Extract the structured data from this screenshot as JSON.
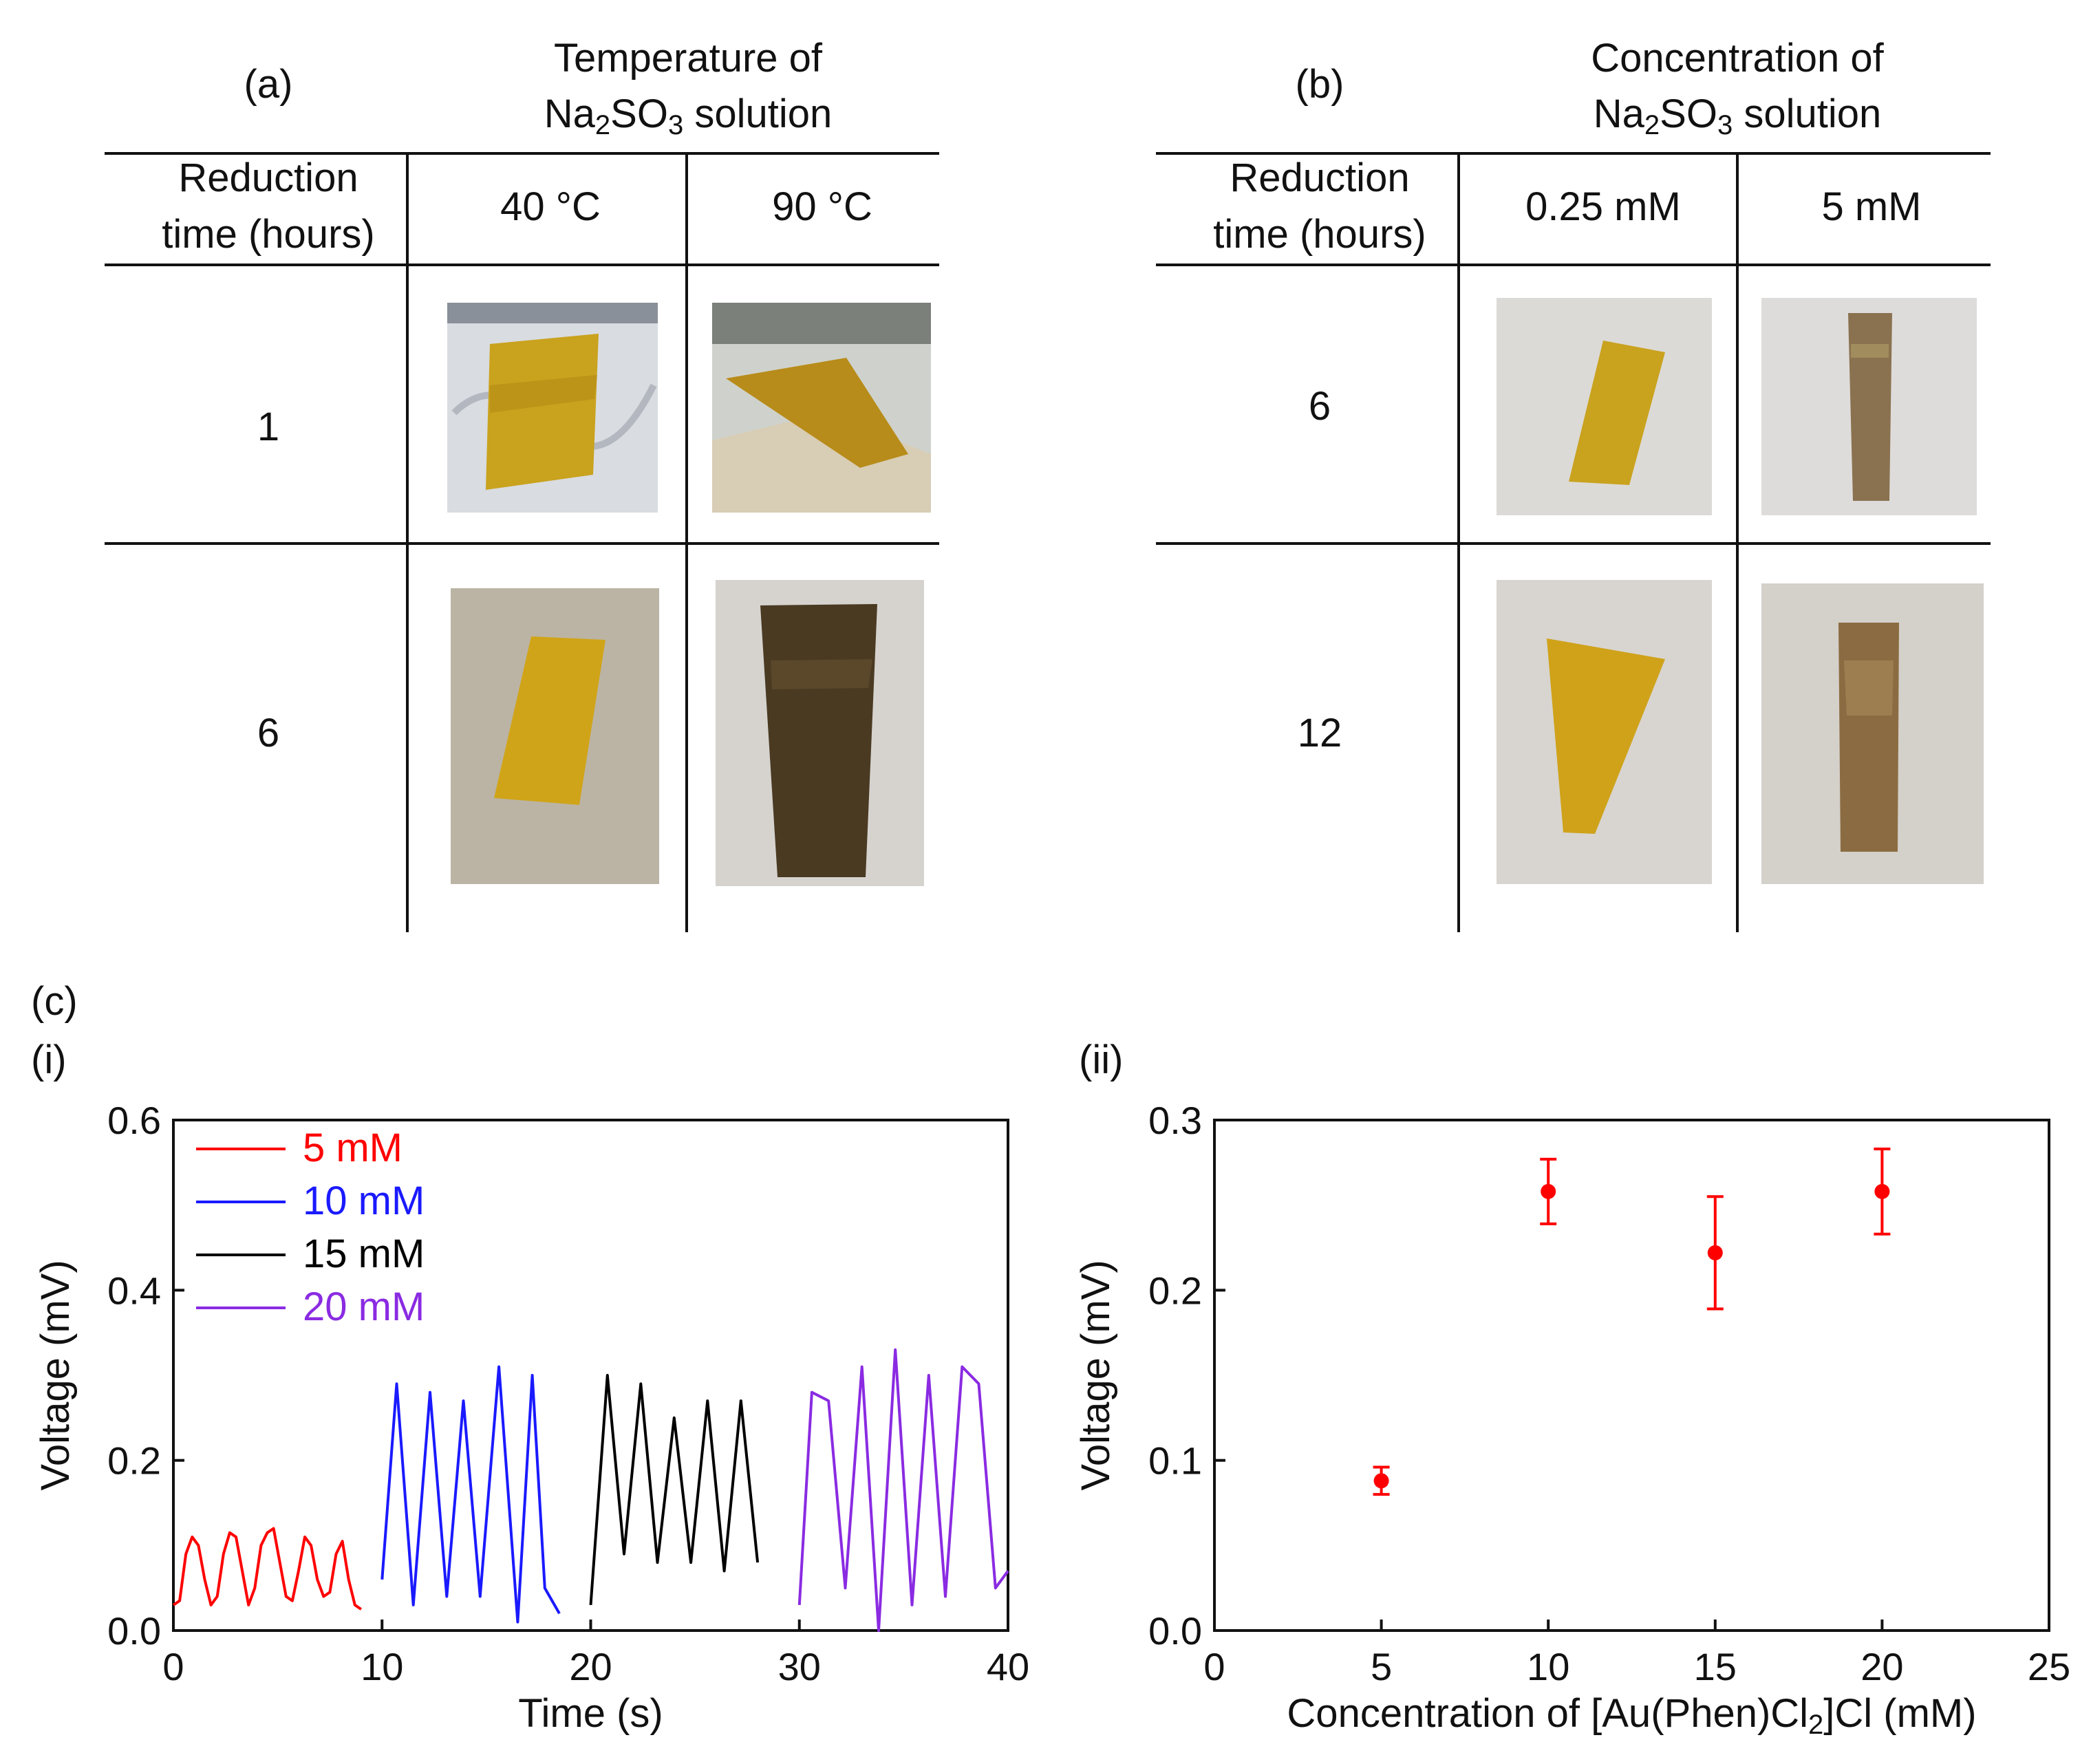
{
  "panel_a": {
    "label": "(a)",
    "title_line1": "Temperature of",
    "title_line2_prefix": "Na",
    "title_sub1": "2",
    "title_mid": "SO",
    "title_sub2": "3",
    "title_suffix": " solution",
    "row_header_line1": "Reduction",
    "row_header_line2": "time (hours)",
    "columns": [
      "40 °C",
      "90 °C"
    ],
    "rows": [
      "1",
      "6"
    ]
  },
  "panel_b": {
    "label": "(b)",
    "title_line1": "Concentration of",
    "title_line2_prefix": "Na",
    "title_sub1": "2",
    "title_mid": "SO",
    "title_sub2": "3",
    "title_suffix": " solution",
    "row_header_line1": "Reduction",
    "row_header_line2": "time (hours)",
    "columns": [
      "0.25 mM",
      "5 mM"
    ],
    "rows": [
      "6",
      "12"
    ]
  },
  "panel_c": {
    "label": "(c)",
    "sub_i": "(i)",
    "sub_ii": "(ii)"
  },
  "colors": {
    "red": "#ff0000",
    "blue": "#1a1aff",
    "black": "#000000",
    "purple": "#8a2be2",
    "film_yellow": "#c9a21e",
    "film_dark": "#4a3a22",
    "film_bronze": "#8a7250"
  },
  "chart_data": [
    {
      "type": "line",
      "xlabel": "Time (s)",
      "ylabel": "Voltage (mV)",
      "xlim": [
        0,
        40
      ],
      "ylim": [
        0.0,
        0.6
      ],
      "xticks": [
        "0",
        "10",
        "20",
        "30",
        "40"
      ],
      "yticks": [
        "0.0",
        "0.2",
        "0.4",
        "0.6"
      ],
      "legend": [
        "5 mM",
        "10 mM",
        "15 mM",
        "20 mM"
      ],
      "series": [
        {
          "name": "5 mM",
          "color": "#ff0000",
          "x": [
            0,
            0.3,
            0.6,
            0.9,
            1.2,
            1.5,
            1.8,
            2.1,
            2.4,
            2.7,
            3.0,
            3.3,
            3.6,
            3.9,
            4.2,
            4.5,
            4.8,
            5.1,
            5.4,
            5.7,
            6.0,
            6.3,
            6.6,
            6.9,
            7.2,
            7.5,
            7.8,
            8.1,
            8.4,
            8.7,
            9.0
          ],
          "y": [
            0.03,
            0.035,
            0.09,
            0.11,
            0.1,
            0.06,
            0.03,
            0.04,
            0.09,
            0.115,
            0.11,
            0.07,
            0.03,
            0.05,
            0.1,
            0.115,
            0.12,
            0.08,
            0.04,
            0.035,
            0.07,
            0.11,
            0.1,
            0.06,
            0.04,
            0.045,
            0.09,
            0.105,
            0.06,
            0.03,
            0.025
          ]
        },
        {
          "name": "10 mM",
          "color": "#1a1aff",
          "x": [
            10.0,
            10.7,
            11.5,
            12.3,
            13.1,
            13.9,
            14.7,
            15.6,
            16.5,
            17.2,
            17.8,
            18.5
          ],
          "y": [
            0.06,
            0.29,
            0.03,
            0.28,
            0.04,
            0.27,
            0.04,
            0.31,
            0.01,
            0.3,
            0.05,
            0.02
          ]
        },
        {
          "name": "15 mM",
          "color": "#000000",
          "x": [
            20.0,
            20.8,
            21.6,
            22.4,
            23.2,
            24.0,
            24.8,
            25.6,
            26.4,
            27.2,
            28.0
          ],
          "y": [
            0.03,
            0.3,
            0.09,
            0.29,
            0.08,
            0.25,
            0.08,
            0.27,
            0.07,
            0.27,
            0.08
          ]
        },
        {
          "name": "20 mM",
          "color": "#8a2be2",
          "x": [
            30.0,
            30.6,
            31.4,
            32.2,
            33.0,
            33.8,
            34.6,
            35.4,
            36.2,
            37.0,
            37.8,
            38.6,
            39.4,
            40.0
          ],
          "y": [
            0.03,
            0.28,
            0.27,
            0.05,
            0.31,
            0.0,
            0.33,
            0.03,
            0.3,
            0.04,
            0.31,
            0.29,
            0.05,
            0.07
          ]
        }
      ]
    },
    {
      "type": "scatter",
      "xlabel_prefix": "Concentration of [Au(Phen)Cl",
      "xlabel_sub": "2",
      "xlabel_suffix": "]Cl (mM)",
      "ylabel": "Voltage (mV)",
      "xlim": [
        0,
        25
      ],
      "ylim": [
        0.0,
        0.3
      ],
      "xticks": [
        "0",
        "5",
        "10",
        "15",
        "20",
        "25"
      ],
      "yticks": [
        "0.0",
        "0.1",
        "0.2",
        "0.3"
      ],
      "points": [
        {
          "x": 5,
          "y": 0.088,
          "err": 0.008
        },
        {
          "x": 10,
          "y": 0.258,
          "err": 0.019
        },
        {
          "x": 15,
          "y": 0.222,
          "err": 0.033
        },
        {
          "x": 20,
          "y": 0.258,
          "err": 0.025
        }
      ]
    }
  ]
}
